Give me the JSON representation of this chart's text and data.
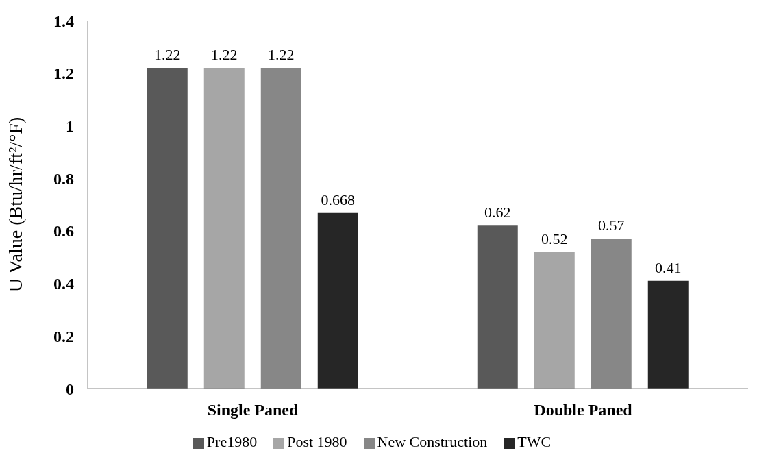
{
  "chart_data": {
    "type": "bar",
    "ylabel": "U Value (Btu/hr/ft²/°F)",
    "categories": [
      "Single Paned",
      "Double Paned"
    ],
    "series": [
      {
        "name": "Pre1980",
        "color": "#595959",
        "values": [
          1.22,
          0.62
        ]
      },
      {
        "name": "Post 1980",
        "color": "#a6a6a6",
        "values": [
          1.22,
          0.52
        ]
      },
      {
        "name": "New Construction",
        "color": "#878787",
        "values": [
          1.22,
          0.57
        ]
      },
      {
        "name": "TWC",
        "color": "#262626",
        "values": [
          0.668,
          0.41
        ]
      }
    ],
    "ylim": [
      0,
      1.4
    ],
    "yticks": [
      0,
      0.2,
      0.4,
      0.6,
      0.8,
      1,
      1.2,
      1.4
    ],
    "grid": false,
    "legend": "bottom",
    "data_labels": true
  }
}
